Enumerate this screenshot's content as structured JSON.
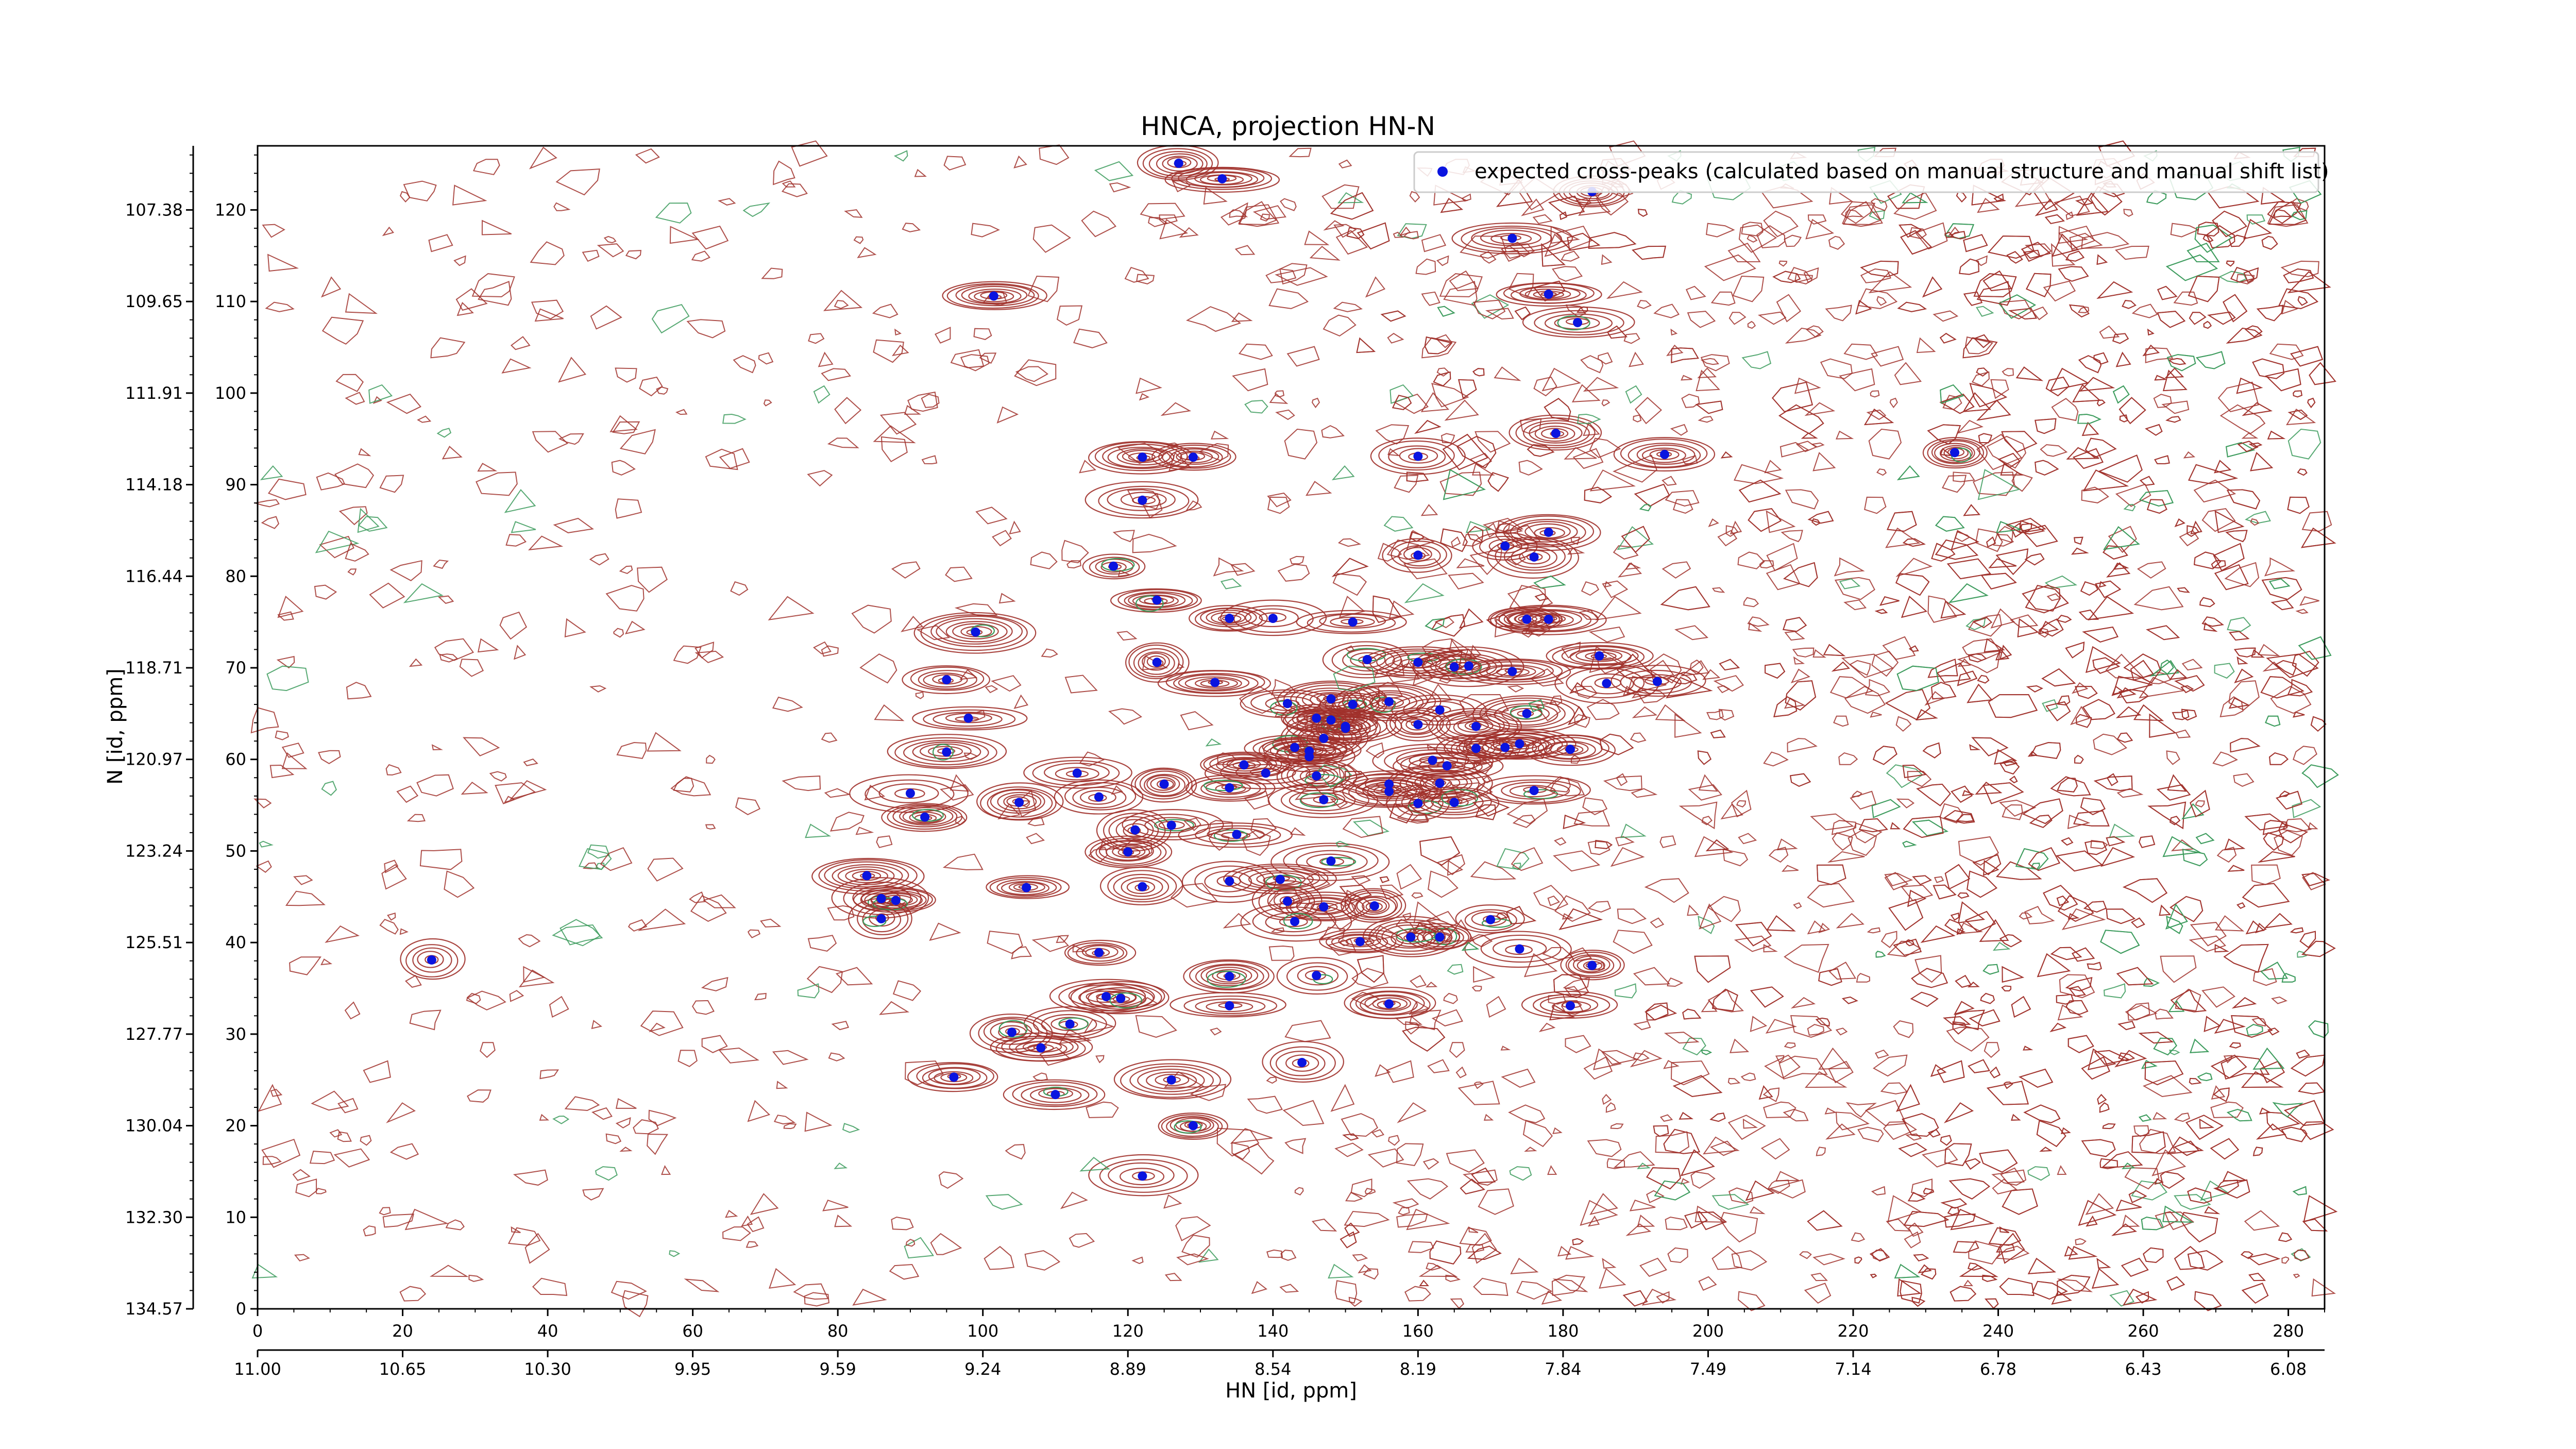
{
  "chart_data": {
    "type": "scatter",
    "title": "HNCA, projection HN-N",
    "xlabel": "HN [id, ppm]",
    "ylabel": "N [id, ppm]",
    "x_index_range": [
      0,
      285
    ],
    "y_index_range": [
      0,
      127
    ],
    "x_index_ticks": [
      "0",
      "20",
      "40",
      "60",
      "80",
      "100",
      "120",
      "140",
      "160",
      "180",
      "200",
      "220",
      "240",
      "260",
      "280"
    ],
    "x_ppm_ticks": [
      "11.00",
      "10.65",
      "10.30",
      "9.95",
      "9.59",
      "9.24",
      "8.89",
      "8.54",
      "8.19",
      "7.84",
      "7.49",
      "7.14",
      "6.78",
      "6.43",
      "6.08"
    ],
    "y_index_ticks": [
      "0",
      "10",
      "20",
      "30",
      "40",
      "50",
      "60",
      "70",
      "80",
      "90",
      "100",
      "110",
      "120"
    ],
    "y_ppm_ticks": [
      "134.57",
      "132.30",
      "130.04",
      "127.77",
      "125.51",
      "123.24",
      "120.97",
      "118.71",
      "116.44",
      "114.18",
      "111.91",
      "109.65",
      "107.38"
    ],
    "legend": {
      "label": "expected cross-peaks (calculated based on manual structure and manual shift list)",
      "placement": "top-right"
    },
    "colors": {
      "positive_contour": "#a0302a",
      "negative_contour": "#3a9a5a",
      "marker": "#0a14e0"
    },
    "series": [
      {
        "name": "expected cross-peaks (calculated based on manual structure and manual shift list)",
        "points": [
          [
            127,
            125.1
          ],
          [
            133,
            123.4
          ],
          [
            184,
            122
          ],
          [
            173,
            116.9
          ],
          [
            178,
            110.8
          ],
          [
            101.5,
            110.6
          ],
          [
            182,
            107.7
          ],
          [
            179,
            95.6
          ],
          [
            122,
            93
          ],
          [
            129,
            93
          ],
          [
            160,
            93.1
          ],
          [
            194,
            93.3
          ],
          [
            234,
            93.5
          ],
          [
            122,
            88.3
          ],
          [
            178,
            84.8
          ],
          [
            172,
            83.3
          ],
          [
            160,
            82.3
          ],
          [
            176,
            82.1
          ],
          [
            118,
            81.1
          ],
          [
            124,
            77.4
          ],
          [
            134,
            75.4
          ],
          [
            140,
            75.4
          ],
          [
            151,
            75
          ],
          [
            175,
            75.3
          ],
          [
            178,
            75.3
          ],
          [
            99,
            73.9
          ],
          [
            153,
            70.9
          ],
          [
            160,
            70.6
          ],
          [
            165,
            70.1
          ],
          [
            167,
            70.2
          ],
          [
            173,
            69.6
          ],
          [
            124,
            70.6
          ],
          [
            95,
            68.7
          ],
          [
            132,
            68.4
          ],
          [
            185,
            71.3
          ],
          [
            186,
            68.3
          ],
          [
            193,
            68.5
          ],
          [
            148,
            66.6
          ],
          [
            151,
            66
          ],
          [
            156,
            66.3
          ],
          [
            163,
            65.4
          ],
          [
            146,
            64.5
          ],
          [
            148,
            64.3
          ],
          [
            150,
            63.4
          ],
          [
            160,
            63.8
          ],
          [
            168,
            63.6
          ],
          [
            147,
            62.3
          ],
          [
            143,
            61.3
          ],
          [
            145,
            60.9
          ],
          [
            95,
            60.8
          ],
          [
            98,
            64.5
          ],
          [
            175,
            65
          ],
          [
            174,
            61.7
          ],
          [
            172,
            61.3
          ],
          [
            181,
            61.1
          ],
          [
            168,
            61.2
          ],
          [
            162,
            59.9
          ],
          [
            164,
            59.3
          ],
          [
            136,
            59.4
          ],
          [
            139,
            58.5
          ],
          [
            146,
            58.2
          ],
          [
            113,
            58.5
          ],
          [
            125,
            57.3
          ],
          [
            134,
            56.9
          ],
          [
            156,
            57.3
          ],
          [
            156,
            56.5
          ],
          [
            163,
            57.4
          ],
          [
            90,
            56.3
          ],
          [
            116,
            55.9
          ],
          [
            147,
            55.6
          ],
          [
            105,
            55.3
          ],
          [
            160,
            55.2
          ],
          [
            165,
            55.3
          ],
          [
            176,
            56.6
          ],
          [
            92,
            53.7
          ],
          [
            126,
            52.8
          ],
          [
            135,
            51.8
          ],
          [
            121,
            52.3
          ],
          [
            120,
            49.9
          ],
          [
            148,
            48.9
          ],
          [
            141,
            46.9
          ],
          [
            134,
            46.7
          ],
          [
            84,
            47.3
          ],
          [
            106,
            46
          ],
          [
            122,
            46.1
          ],
          [
            86,
            44.8
          ],
          [
            88,
            44.6
          ],
          [
            142,
            44.5
          ],
          [
            154,
            44
          ],
          [
            163,
            40.6
          ],
          [
            147,
            43.9
          ],
          [
            86,
            42.6
          ],
          [
            143,
            42.3
          ],
          [
            170,
            42.5
          ],
          [
            152,
            40.1
          ],
          [
            159,
            40.6
          ],
          [
            174,
            39.3
          ],
          [
            116,
            38.9
          ],
          [
            24,
            38.1
          ],
          [
            184,
            37.5
          ],
          [
            134,
            36.3
          ],
          [
            146,
            36.4
          ],
          [
            117,
            34.1
          ],
          [
            119,
            33.9
          ],
          [
            156,
            33.3
          ],
          [
            134,
            33.1
          ],
          [
            112,
            31.1
          ],
          [
            104,
            30.2
          ],
          [
            108,
            28.5
          ],
          [
            181,
            33.1
          ],
          [
            96,
            25.3
          ],
          [
            126,
            25
          ],
          [
            110,
            23.4
          ],
          [
            129,
            20
          ],
          [
            122,
            14.5
          ],
          [
            144,
            26.9
          ],
          [
            150,
            63.6
          ],
          [
            142,
            66.1
          ],
          [
            145,
            60.3
          ]
        ]
      }
    ]
  }
}
